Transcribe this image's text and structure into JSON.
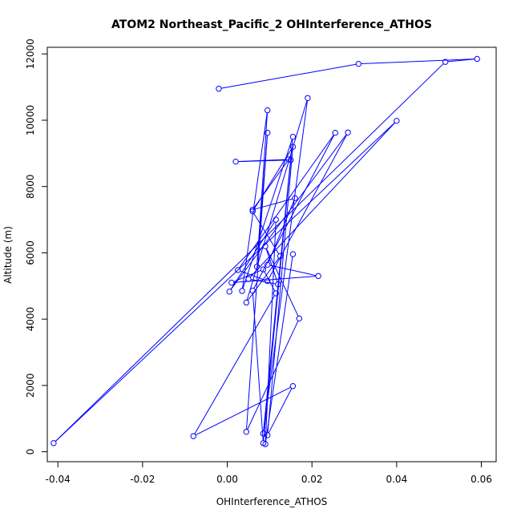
{
  "chart_data": {
    "type": "line",
    "title": "ATOM2 Northeast_Pacific_2 OHInterference_ATHOS",
    "xlabel": "OHInterference_ATHOS",
    "ylabel": "Altitude (m)",
    "xlim": [
      -0.0425,
      0.0635
    ],
    "ylim": [
      -300,
      12200
    ],
    "x_ticks": [
      -0.04,
      -0.02,
      0.0,
      0.02,
      0.04,
      0.06
    ],
    "x_tick_labels": [
      "-0.04",
      "-0.02",
      "0.00",
      "0.02",
      "0.04",
      "0.06"
    ],
    "y_ticks": [
      0,
      2000,
      4000,
      6000,
      8000,
      10000,
      12000
    ],
    "y_tick_labels": [
      "0",
      "2000",
      "4000",
      "6000",
      "8000",
      "10000",
      "12000"
    ],
    "grid": false,
    "marker": "open-circle",
    "colors": {
      "series": "#0000ff",
      "axis": "#000000"
    },
    "series": [
      {
        "points": [
          [
            -0.002,
            10950
          ],
          [
            0.031,
            11700
          ],
          [
            0.059,
            11850
          ],
          [
            0.0515,
            11760
          ],
          [
            -0.041,
            260
          ],
          [
            0.04,
            9980
          ],
          [
            0.005,
            5210
          ],
          [
            0.012,
            5050
          ],
          [
            0.009,
            6200
          ],
          [
            0.017,
            4020
          ],
          [
            0.0045,
            600
          ],
          [
            0.0095,
            9620
          ],
          [
            0.007,
            5580
          ],
          [
            0.0095,
            10300
          ],
          [
            0.0035,
            4850
          ],
          [
            0.0155,
            9500
          ],
          [
            0.0085,
            550
          ],
          [
            0.019,
            10670
          ],
          [
            0.0045,
            4500
          ],
          [
            0.0125,
            5900
          ],
          [
            0.006,
            7250
          ],
          [
            0.0155,
            9200
          ],
          [
            0.0095,
            500
          ],
          [
            0.0155,
            1980
          ],
          [
            -0.008,
            470
          ],
          [
            0.0115,
            4780
          ],
          [
            0.0085,
            5500
          ],
          [
            0.001,
            5100
          ],
          [
            0.0215,
            5300
          ],
          [
            0.0095,
            5640
          ],
          [
            0.016,
            7650
          ],
          [
            0.006,
            7300
          ],
          [
            0.0145,
            8820
          ],
          [
            0.002,
            8750
          ],
          [
            0.015,
            8800
          ],
          [
            0.0085,
            260
          ],
          [
            0.006,
            4860
          ],
          [
            0.0255,
            9620
          ],
          [
            0.0025,
            5480
          ],
          [
            0.0095,
            5150
          ],
          [
            0.0285,
            9630
          ],
          [
            0.0005,
            4830
          ],
          [
            0.0115,
            7000
          ],
          [
            0.009,
            230
          ],
          [
            0.0155,
            5960
          ]
        ]
      }
    ]
  }
}
